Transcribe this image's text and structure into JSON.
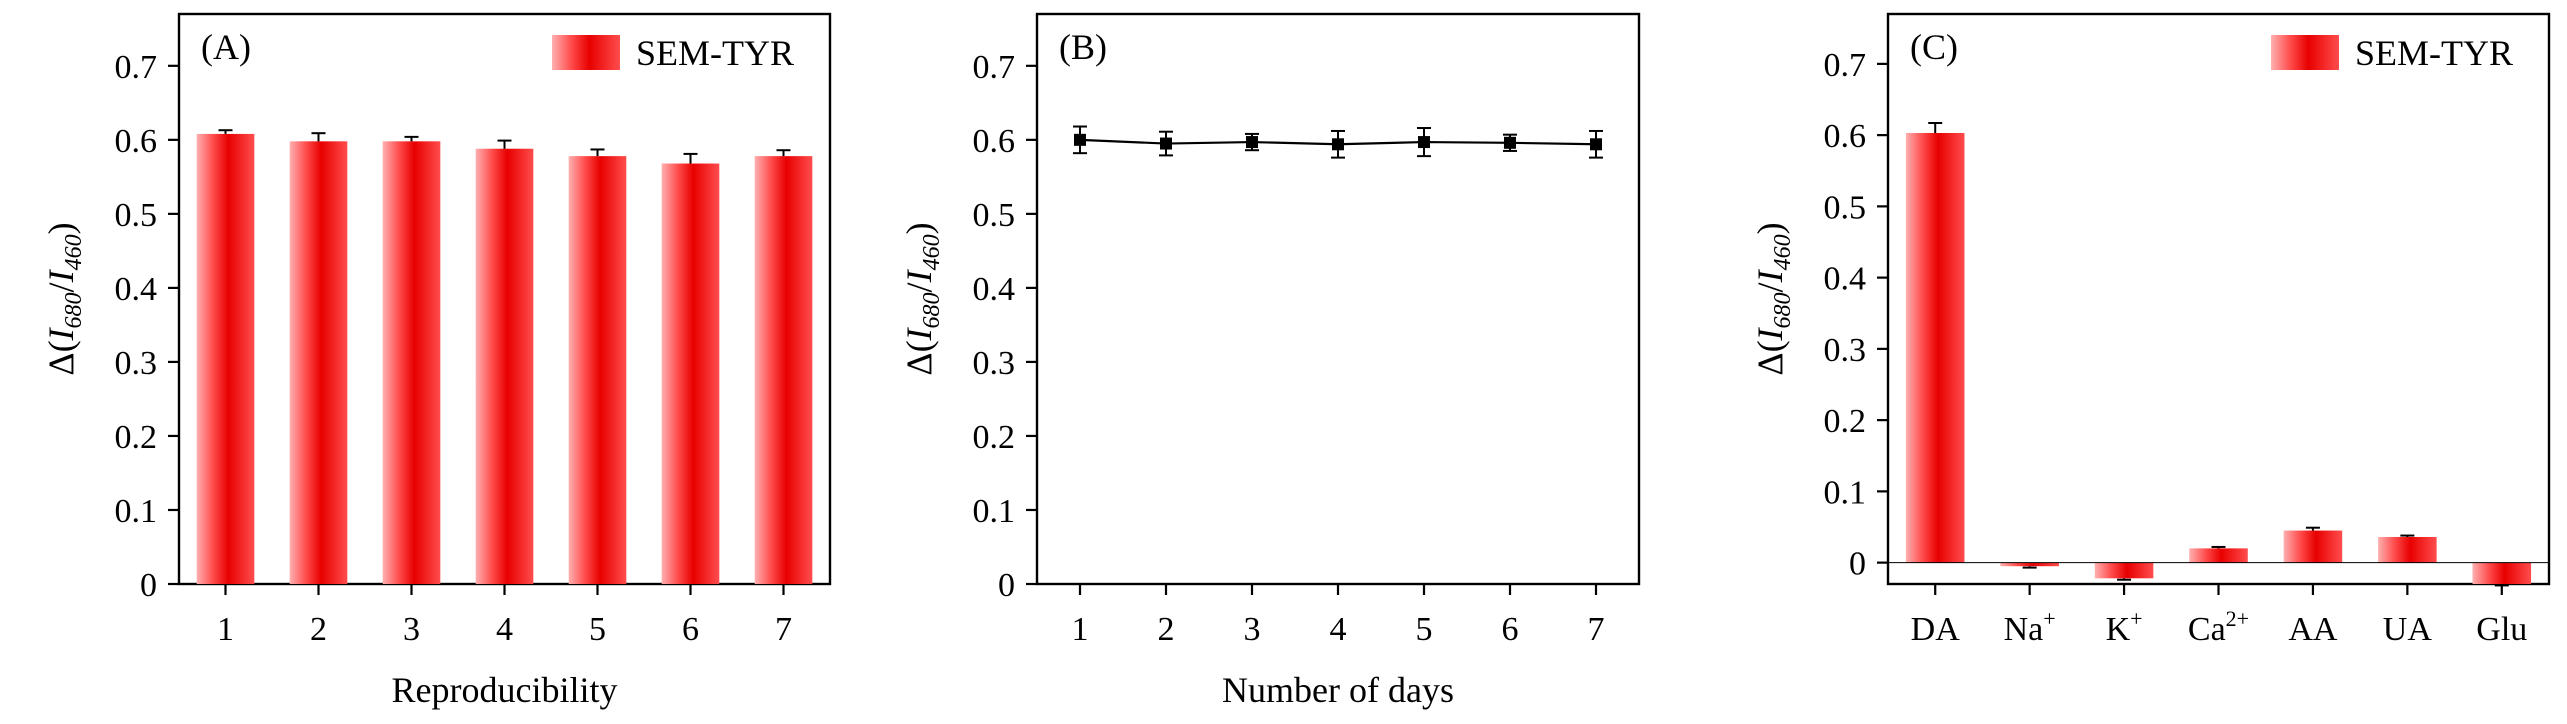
{
  "colors": {
    "bar_light": "#ffb0b0",
    "bar_mid": "#ff4d4d",
    "bar_dark": "#e80000",
    "axis": "#000000",
    "line": "#000000"
  },
  "chart_data": [
    {
      "panel": "(A)",
      "type": "bar",
      "xlabel": "Reproducibility",
      "ylabel": {
        "prefix": "Δ(",
        "i1": "I",
        "s1": "680",
        "slash": "/",
        "i2": "I",
        "s2": "460",
        "suffix": ")"
      },
      "ylim": [
        0,
        0.77
      ],
      "yticks": [
        "0",
        "0.1",
        "0.2",
        "0.3",
        "0.4",
        "0.5",
        "0.6",
        "0.7"
      ],
      "categories": [
        "1",
        "2",
        "3",
        "4",
        "5",
        "6",
        "7"
      ],
      "series": [
        {
          "name": "SEM-TYR",
          "values": [
            0.608,
            0.598,
            0.598,
            0.588,
            0.578,
            0.568,
            0.578
          ],
          "errors": [
            0.005,
            0.011,
            0.006,
            0.011,
            0.009,
            0.013,
            0.008
          ]
        }
      ],
      "legend": "top-right",
      "grid": false
    },
    {
      "panel": "(B)",
      "type": "line",
      "xlabel": "Number of days",
      "ylabel": {
        "prefix": "Δ(",
        "i1": "I",
        "s1": "680",
        "slash": "/",
        "i2": "I",
        "s2": "460",
        "suffix": ")"
      },
      "ylim": [
        0,
        0.77
      ],
      "yticks": [
        "0",
        "0.1",
        "0.2",
        "0.3",
        "0.4",
        "0.5",
        "0.6",
        "0.7"
      ],
      "categories": [
        "1",
        "2",
        "3",
        "4",
        "5",
        "6",
        "7"
      ],
      "series": [
        {
          "values": [
            0.6,
            0.595,
            0.597,
            0.594,
            0.597,
            0.596,
            0.594
          ],
          "errors": [
            0.018,
            0.016,
            0.011,
            0.018,
            0.019,
            0.011,
            0.018
          ]
        }
      ],
      "grid": false
    },
    {
      "panel": "(C)",
      "type": "bar",
      "xlabel": "",
      "ylabel": {
        "prefix": "Δ(",
        "i1": "I",
        "s1": "680",
        "slash": "/",
        "i2": "I",
        "s2": "460",
        "suffix": ")"
      },
      "ylim": [
        -0.03,
        0.77
      ],
      "yticks": [
        "0",
        "0.1",
        "0.2",
        "0.3",
        "0.4",
        "0.5",
        "0.6",
        "0.7"
      ],
      "categories": [
        {
          "base": "DA",
          "sup": ""
        },
        {
          "base": "Na",
          "sup": "+"
        },
        {
          "base": "K",
          "sup": "+"
        },
        {
          "base": "Ca",
          "sup": "2+"
        },
        {
          "base": "AA",
          "sup": ""
        },
        {
          "base": "UA",
          "sup": ""
        },
        {
          "base": "Glu",
          "sup": ""
        }
      ],
      "series": [
        {
          "name": "SEM-TYR",
          "values": [
            0.603,
            -0.005,
            -0.022,
            0.02,
            0.045,
            0.036,
            -0.03
          ],
          "errors": [
            0.014,
            0.002,
            0.002,
            0.002,
            0.004,
            0.002,
            0.002
          ]
        }
      ],
      "legend": "top-right",
      "grid": false
    }
  ]
}
